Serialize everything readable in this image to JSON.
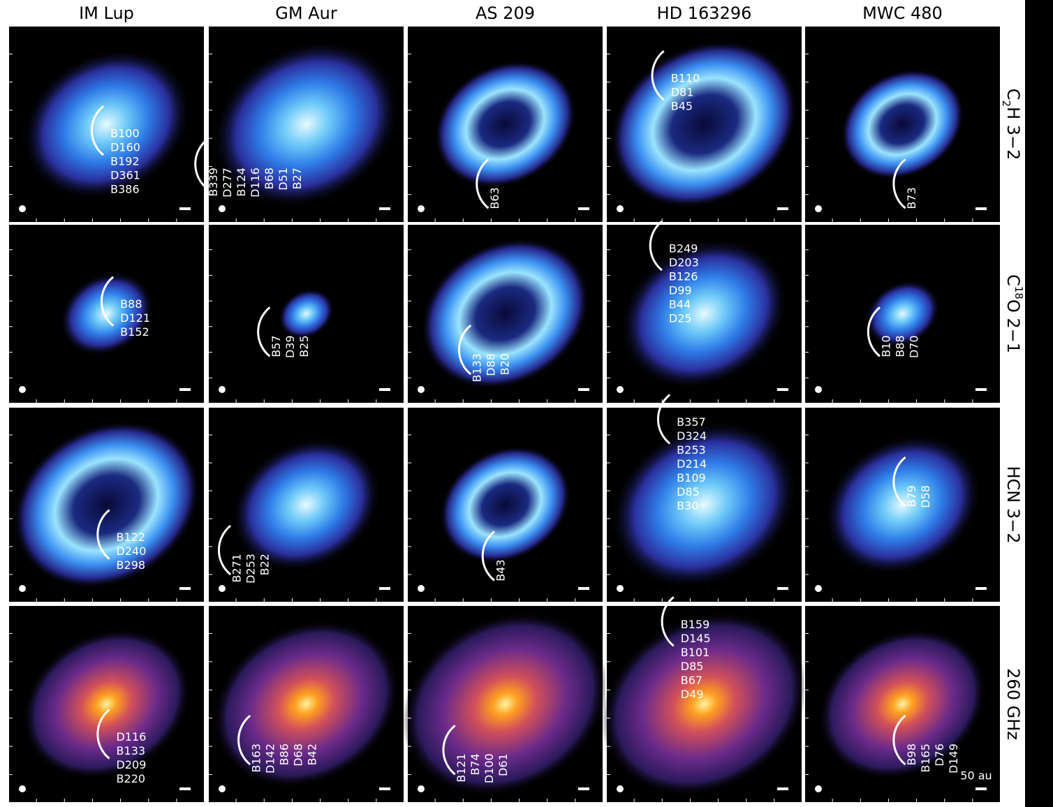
{
  "columns": [
    "IM Lup",
    "GM Aur",
    "AS 209",
    "HD 163296",
    "MWC 480"
  ],
  "rows": [
    {
      "label": [
        {
          "text": "C"
        },
        {
          "text": "2",
          "sub": true
        },
        {
          "text": "H 3−2"
        }
      ],
      "panels": [
        {
          "labels": [
            "B100",
            "D160",
            "B192",
            "D361",
            "B386"
          ]
        },
        {
          "labels": [
            "B339",
            "D277",
            "B124",
            "D116",
            "B68",
            "D51",
            "B27"
          ]
        },
        {
          "labels": [
            "B63"
          ]
        },
        {
          "labels": [
            "B110",
            "D81",
            "B45"
          ]
        },
        {
          "labels": [
            "B73"
          ]
        }
      ]
    },
    {
      "label": [
        {
          "text": "C"
        },
        {
          "text": "18",
          "sup": true
        },
        {
          "text": "O 2−1"
        }
      ],
      "panels": [
        {
          "labels": [
            "B88",
            "D121",
            "B152"
          ]
        },
        {
          "labels": [
            "B57",
            "D39",
            "B25"
          ]
        },
        {
          "labels": [
            "B133",
            "D88",
            "B20"
          ]
        },
        {
          "labels": [
            "B249",
            "D203",
            "B126",
            "D99",
            "B44",
            "D25"
          ]
        },
        {
          "labels": [
            "B10",
            "B88",
            "D70"
          ]
        }
      ]
    },
    {
      "label": [
        {
          "text": "HCN 3−2"
        }
      ],
      "panels": [
        {
          "labels": [
            "B122",
            "D240",
            "B298"
          ]
        },
        {
          "labels": [
            "B271",
            "D253",
            "B22"
          ]
        },
        {
          "labels": [
            "B43"
          ]
        },
        {
          "labels": [
            "B357",
            "D324",
            "B253",
            "D214",
            "B109",
            "D85",
            "B30"
          ]
        },
        {
          "labels": [
            "B79",
            "D58"
          ]
        }
      ]
    },
    {
      "label": [
        {
          "text": "260 GHz"
        }
      ],
      "panels": [
        {
          "labels": [
            "D116",
            "B133",
            "D209",
            "B220"
          ]
        },
        {
          "labels": [
            "B163",
            "D142",
            "B86",
            "D68",
            "B42"
          ]
        },
        {
          "labels": [
            "B121",
            "B74",
            "D100",
            "D61"
          ]
        },
        {
          "labels": [
            "B159",
            "D145",
            "B101",
            "D85",
            "B67",
            "D49"
          ]
        },
        {
          "labels": [
            "B98",
            "B165",
            "D76",
            "D149"
          ]
        }
      ]
    }
  ],
  "scale_label": "50 au"
}
